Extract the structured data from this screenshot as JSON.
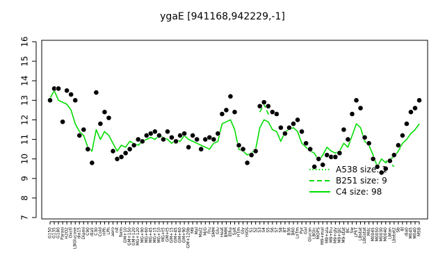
{
  "chart_data": {
    "type": "line",
    "title": "ygaE [941168,942229,-1]",
    "xlabel": "",
    "ylabel": "",
    "ylim": [
      7,
      16
    ],
    "yticks": [
      7,
      8,
      9,
      10,
      11,
      12,
      13,
      14,
      15,
      16
    ],
    "grid": false,
    "legend_position": "right",
    "categories": [
      "G150",
      "G135",
      "G180",
      "Parasi",
      "H2O2",
      "Oxctl",
      "LBGlucose",
      "dia15",
      "Diami",
      "C90",
      "dia5",
      "C30",
      "Cold",
      "HPh",
      "LPh",
      "aero",
      "nit",
      "ferm",
      "GM+10",
      "GM+150",
      "GM+120",
      "MG+120",
      "MG+90",
      "MG+60",
      "MG+45",
      "MG+15",
      "MG+10",
      "MG+t5",
      "GM+t5",
      "GM+15",
      "GM+45",
      "GM+60",
      "GM+90",
      "GM+120b",
      "M9",
      "Mal",
      "Mal2",
      "M/G",
      "Fru",
      "SMM",
      "Glu",
      "Heat",
      "BMM",
      "Etha",
      "Salt",
      "HTm",
      "Gly",
      "HiOs",
      "S1",
      "S2",
      "S3",
      "S4",
      "S5",
      "S6",
      "S7",
      "S8",
      "BT",
      "B36",
      "B60",
      "LoTm",
      "Pyr",
      "Gal",
      "Glucon",
      "LBGlc",
      "MOPS",
      "M9+mal",
      "M9+ala",
      "M9+fru",
      "M9+gly",
      "M9+glc",
      "M9-stat",
      "BC",
      "Sw",
      "LPhT",
      "LBstat",
      "LBGstat",
      "Mdc",
      "M0045",
      "M0050",
      "M0030",
      "M0040",
      "Lbtan",
      "Lbstat2",
      "Sb",
      "Bl",
      "dia0",
      "M045",
      "M040",
      "M5B"
    ],
    "series": [
      {
        "name": "A538 size: 1",
        "style": "dotted",
        "values": [
          null,
          null,
          null,
          null,
          null,
          null,
          null,
          null,
          null,
          null,
          null,
          null,
          null,
          null,
          null,
          null,
          null,
          null,
          null,
          null,
          null,
          null,
          null,
          null,
          null,
          null,
          null,
          null,
          null,
          null,
          null,
          null,
          null,
          null,
          null,
          null,
          null,
          null,
          null,
          null,
          null,
          null,
          null,
          null,
          null,
          null,
          null,
          null,
          null,
          null,
          null,
          null,
          null,
          null,
          null,
          null,
          null,
          null,
          null,
          null,
          null,
          null,
          null,
          null,
          null,
          10.8,
          null,
          null,
          null,
          null,
          null,
          null,
          null,
          null,
          null,
          null,
          null,
          null,
          null,
          null,
          null,
          null,
          null,
          null,
          null,
          null,
          null,
          null,
          null
        ]
      },
      {
        "name": "B251 size: 9",
        "style": "dashed",
        "values": [
          null,
          null,
          null,
          null,
          null,
          null,
          null,
          null,
          null,
          null,
          null,
          null,
          null,
          null,
          null,
          null,
          null,
          null,
          null,
          null,
          null,
          null,
          null,
          null,
          null,
          null,
          null,
          null,
          null,
          null,
          null,
          null,
          null,
          null,
          null,
          null,
          null,
          null,
          null,
          null,
          null,
          null,
          null,
          null,
          null,
          null,
          null,
          null,
          null,
          null,
          12.4,
          12.8,
          12.3,
          12.4,
          12.2,
          null,
          null,
          null,
          null,
          null,
          null,
          null,
          null,
          null,
          null,
          null,
          null,
          null,
          null,
          null,
          null,
          null,
          null,
          null,
          null,
          null,
          null,
          null,
          null,
          null,
          9.9,
          9.8,
          9.6,
          null,
          null,
          null,
          null,
          null,
          null
        ]
      },
      {
        "name": "C4 size: 98",
        "style": "solid",
        "values": [
          13.1,
          13.5,
          13.0,
          12.9,
          12.8,
          12.5,
          11.8,
          11.4,
          11.2,
          10.6,
          10.4,
          11.5,
          11.0,
          11.4,
          11.2,
          10.8,
          10.4,
          10.7,
          10.6,
          10.9,
          10.8,
          10.7,
          10.9,
          11.0,
          11.1,
          11.0,
          11.2,
          11.1,
          11.0,
          10.8,
          11.0,
          10.9,
          11.2,
          11.0,
          10.9,
          10.8,
          10.7,
          10.6,
          10.5,
          10.8,
          10.9,
          11.8,
          11.9,
          12.0,
          11.5,
          10.5,
          10.4,
          10.2,
          10.3,
          10.5,
          11.6,
          12.0,
          11.9,
          11.5,
          11.4,
          10.9,
          11.4,
          11.5,
          11.6,
          11.4,
          10.8,
          10.6,
          10.4,
          10.3,
          9.9,
          10.2,
          10.6,
          10.4,
          10.3,
          10.4,
          10.8,
          10.6,
          11.2,
          11.8,
          11.6,
          10.9,
          10.7,
          10.2,
          9.6,
          10.0,
          9.8,
          10.0,
          10.1,
          10.4,
          10.8,
          11.0,
          11.3,
          11.5,
          11.8
        ]
      },
      {
        "name": "points",
        "style": "markers",
        "values": [
          13.0,
          13.6,
          13.6,
          11.9,
          13.5,
          13.3,
          13.0,
          11.2,
          11.5,
          10.5,
          9.8,
          13.4,
          11.8,
          12.4,
          12.1,
          10.4,
          10.0,
          10.1,
          10.3,
          10.5,
          10.7,
          11.0,
          10.9,
          11.2,
          11.3,
          11.4,
          11.2,
          11.0,
          11.4,
          11.1,
          10.9,
          11.2,
          11.3,
          10.6,
          11.2,
          11.0,
          10.5,
          11.0,
          11.1,
          11.0,
          11.3,
          12.3,
          12.5,
          13.2,
          12.4,
          10.7,
          10.5,
          9.8,
          10.2,
          10.4,
          12.7,
          12.9,
          12.7,
          12.4,
          12.3,
          11.6,
          11.3,
          11.6,
          11.8,
          12.0,
          11.4,
          10.8,
          10.5,
          9.6,
          10.0,
          9.7,
          10.2,
          10.1,
          10.1,
          10.3,
          11.5,
          11.0,
          12.3,
          13.0,
          12.6,
          11.1,
          10.8,
          10.0,
          9.6,
          9.3,
          9.5,
          9.9,
          10.2,
          10.7,
          11.2,
          11.8,
          12.4,
          12.6,
          13.0
        ]
      }
    ],
    "legend": [
      {
        "label": "A538 size: 1",
        "style": "dotted"
      },
      {
        "label": "B251 size: 9",
        "style": "dashed"
      },
      {
        "label": "C4 size: 98",
        "style": "solid"
      }
    ],
    "colors": {
      "lines": "#00dd00",
      "points": "#000000",
      "axis": "#000000"
    }
  }
}
